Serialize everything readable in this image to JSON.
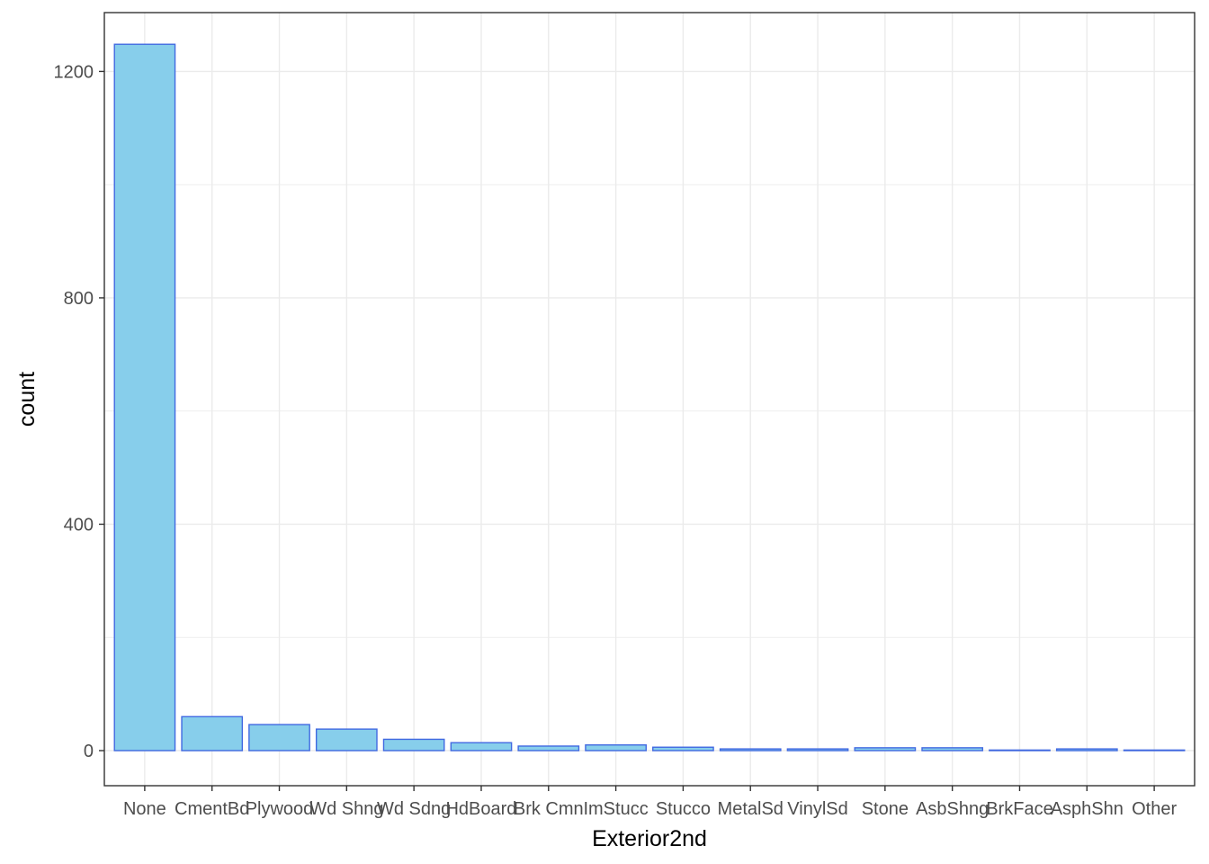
{
  "chart_data": {
    "type": "bar",
    "title": "",
    "xlabel": "Exterior2nd",
    "ylabel": "count",
    "categories": [
      "None",
      "CmentBd",
      "Plywood",
      "Wd Shng",
      "Wd Sdng",
      "HdBoard",
      "Brk Cmn",
      "ImStucc",
      "Stucco",
      "MetalSd",
      "VinylSd",
      "Stone",
      "AsbShng",
      "BrkFace",
      "AsphShn",
      "Other"
    ],
    "values": [
      1248,
      60,
      46,
      38,
      20,
      14,
      8,
      10,
      6,
      3,
      3,
      5,
      5,
      1,
      3,
      1
    ],
    "ylim": [
      -62,
      1304
    ],
    "yticks": [
      0,
      400,
      800,
      1200
    ],
    "grid": true,
    "legend": "none",
    "colors": {
      "fill": "#87CEEB",
      "stroke": "#4169E1",
      "grid": "#EBEBEB",
      "panel_border": "#333333"
    }
  }
}
